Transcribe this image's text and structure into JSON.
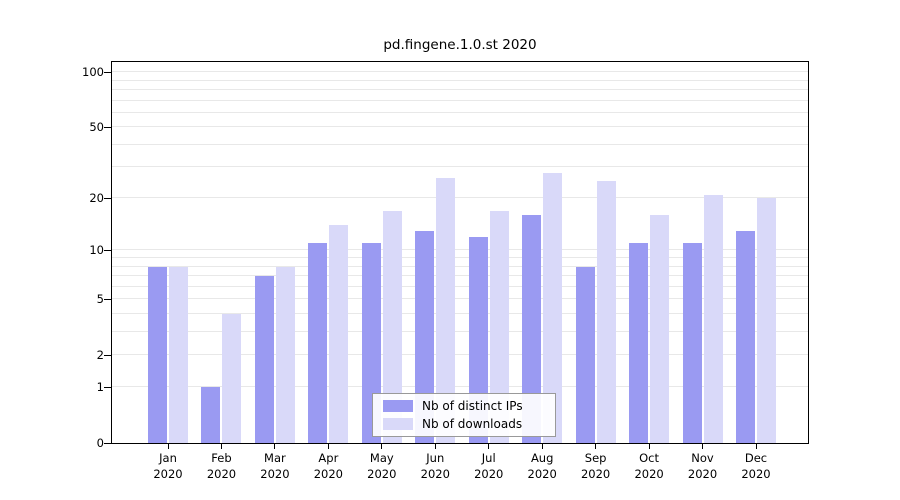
{
  "colors": {
    "distinct_ips": "#9a9af2",
    "downloads": "#d9d9f9",
    "grid": "#e8e8e8",
    "axis": "#000000",
    "legend_border": "#999999",
    "background": "#ffffff"
  },
  "chart_data": {
    "type": "bar",
    "title": "pd.fingene.1.0.st 2020",
    "categories": [
      "Jan",
      "Feb",
      "Mar",
      "Apr",
      "May",
      "Jun",
      "Jul",
      "Aug",
      "Sep",
      "Oct",
      "Nov",
      "Dec"
    ],
    "year": "2020",
    "series": [
      {
        "name": "Nb of distinct IPs",
        "values": [
          8,
          1,
          7,
          11,
          11,
          13,
          12,
          16,
          8,
          11,
          11,
          13
        ]
      },
      {
        "name": "Nb of downloads",
        "values": [
          8,
          4,
          8,
          14,
          17,
          26,
          17,
          28,
          25,
          16,
          21,
          20
        ]
      }
    ],
    "yticks": [
      0,
      1,
      2,
      5,
      10,
      20,
      50,
      100
    ],
    "gridlines": [
      1,
      2,
      3,
      4,
      5,
      6,
      7,
      8,
      9,
      10,
      20,
      30,
      40,
      50,
      60,
      70,
      80,
      90,
      100
    ],
    "yscale": "log1p",
    "ylim": [
      0,
      113
    ],
    "grid": "horizontal",
    "legend_position": "lower center"
  }
}
